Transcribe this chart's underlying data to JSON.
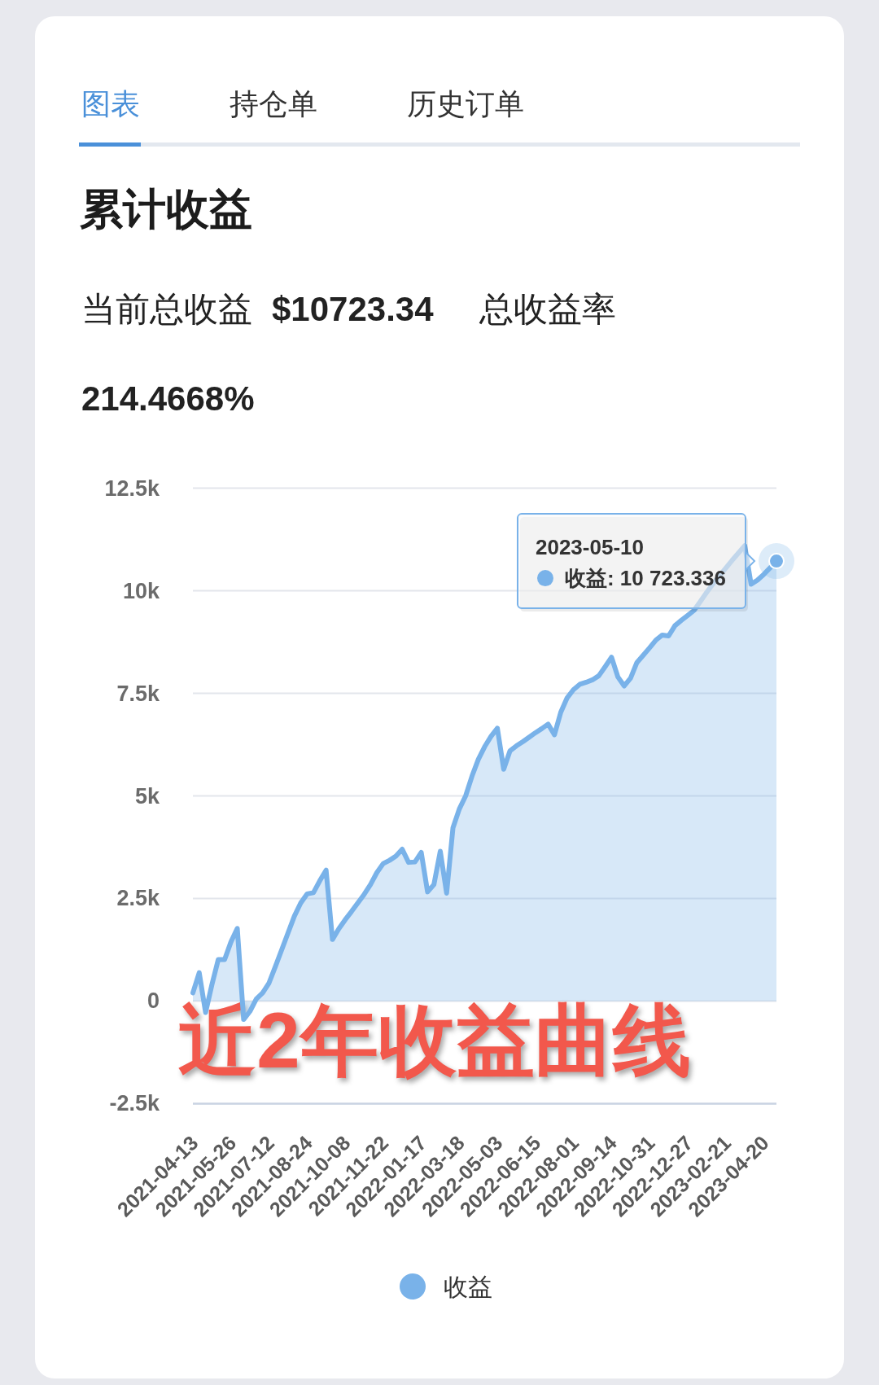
{
  "chart_data": {
    "type": "area",
    "title": "累计收益",
    "subtitle": "当前总收益 $10723.34 总收益率 214.4668%",
    "categories": [
      "2021-04-13",
      null,
      null,
      null,
      null,
      null,
      "2021-05-26",
      null,
      null,
      null,
      null,
      null,
      "2021-07-12",
      null,
      null,
      null,
      null,
      null,
      "2021-08-24",
      null,
      null,
      null,
      null,
      null,
      "2021-10-08",
      null,
      null,
      null,
      null,
      null,
      "2021-11-22",
      null,
      null,
      null,
      null,
      null,
      "2022-01-17",
      null,
      null,
      null,
      null,
      null,
      "2022-03-18",
      null,
      null,
      null,
      null,
      null,
      "2022-05-03",
      null,
      null,
      null,
      null,
      null,
      "2022-06-15",
      null,
      null,
      null,
      null,
      null,
      "2022-08-01",
      null,
      null,
      null,
      null,
      null,
      "2022-09-14",
      null,
      null,
      null,
      null,
      null,
      "2022-10-31",
      null,
      null,
      null,
      null,
      null,
      "2022-12-27",
      null,
      null,
      null,
      null,
      null,
      "2023-02-21",
      null,
      null,
      null,
      null,
      null,
      "2023-04-20",
      null,
      null
    ],
    "series": [
      {
        "name": "收益",
        "color": "#79b2e9",
        "values": [
          200,
          690,
          -280,
          400,
          1010,
          1010,
          1440,
          1770,
          -450,
          -250,
          50,
          200,
          440,
          840,
          1250,
          1660,
          2070,
          2390,
          2610,
          2640,
          2930,
          3190,
          1500,
          1760,
          1980,
          2180,
          2390,
          2600,
          2840,
          3130,
          3350,
          3430,
          3530,
          3700,
          3380,
          3390,
          3620,
          2660,
          2840,
          3650,
          2630,
          4220,
          4680,
          5000,
          5480,
          5890,
          6200,
          6450,
          6650,
          5650,
          6100,
          6220,
          6320,
          6430,
          6540,
          6640,
          6750,
          6490,
          7040,
          7390,
          7590,
          7720,
          7770,
          7830,
          7930,
          8150,
          8380,
          7900,
          7680,
          7870,
          8250,
          8430,
          8610,
          8800,
          8920,
          8900,
          9150,
          9280,
          9400,
          9520,
          9740,
          9960,
          10170,
          10360,
          10550,
          10740,
          10920,
          11100,
          10160,
          10260,
          10400,
          10560,
          10723.336
        ]
      }
    ],
    "ylim": [
      -2500,
      12500
    ],
    "yticks": [
      {
        "value": -2500,
        "label": "-2.5k"
      },
      0,
      {
        "value": 2500,
        "label": "2.5k"
      },
      {
        "value": 5000,
        "label": "5k"
      },
      {
        "value": 7500,
        "label": "7.5k"
      },
      {
        "value": 10000,
        "label": "10k"
      },
      {
        "value": 12500,
        "label": "12.5k"
      }
    ],
    "grid": "y",
    "legend": "bottom",
    "line_style": "solid",
    "annotations": [
      "图表",
      "持仓单",
      "历史订单",
      "近2年收益曲线",
      "2023-05-10\n收益: 10 723.336"
    ]
  }
}
